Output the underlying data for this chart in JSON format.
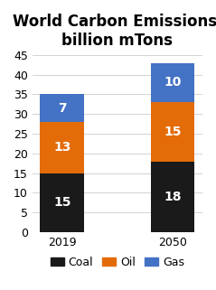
{
  "title": "World Carbon Emissions,\nbillion mTons",
  "categories": [
    "2019",
    "2050"
  ],
  "coal": [
    15,
    18
  ],
  "oil": [
    13,
    15
  ],
  "gas": [
    7,
    10
  ],
  "coal_color": "#1a1a1a",
  "oil_color": "#e36c09",
  "gas_color": "#4472c4",
  "ylim": [
    0,
    45
  ],
  "yticks": [
    0,
    5,
    10,
    15,
    20,
    25,
    30,
    35,
    40,
    45
  ],
  "legend_labels": [
    "Coal",
    "Oil",
    "Gas"
  ],
  "label_fontsize": 10,
  "title_fontsize": 12,
  "tick_fontsize": 9,
  "legend_fontsize": 9,
  "bar_width": 0.4
}
